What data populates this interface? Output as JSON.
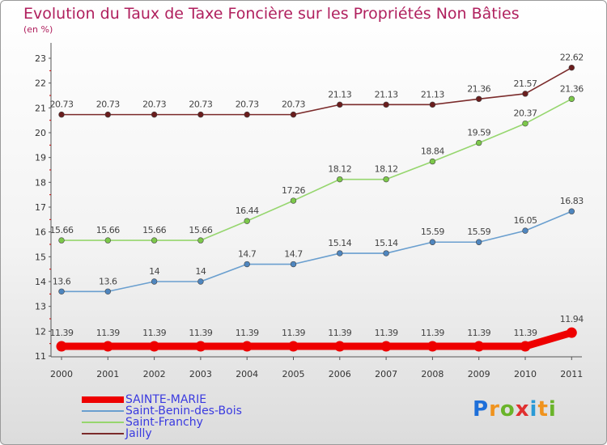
{
  "header": {
    "title": "Evolution du Taux de Taxe Foncière sur les Propriétés Non Bâties",
    "subtitle": "(en %)"
  },
  "logo": {
    "text": "Proxiti",
    "colors": [
      "#1e6fd9",
      "#f0931e",
      "#6ab42a",
      "#e03030",
      "#2a9ad6",
      "#f0931e",
      "#6ab42a"
    ]
  },
  "chart_data": {
    "type": "line",
    "x": [
      "2000",
      "2001",
      "2002",
      "2003",
      "2004",
      "2005",
      "2006",
      "2007",
      "2008",
      "2009",
      "2010",
      "2011"
    ],
    "ylim": [
      11,
      23
    ],
    "yticks": [
      "11",
      "12",
      "13",
      "14",
      "15",
      "16",
      "17",
      "18",
      "19",
      "20",
      "21",
      "22",
      "23"
    ],
    "grid": false,
    "legend_position": "bottom-left",
    "series": [
      {
        "name": "Jailly",
        "color": "#7b2b2b",
        "marker": "#6a1d1d",
        "values": [
          20.73,
          20.73,
          20.73,
          20.73,
          20.73,
          20.73,
          21.13,
          21.13,
          21.13,
          21.36,
          21.57,
          22.62
        ],
        "labels": [
          "20.73",
          "20.73",
          "20.73",
          "20.73",
          "20.73",
          "20.73",
          "21.13",
          "21.13",
          "21.13",
          "21.36",
          "21.57",
          "22.62"
        ]
      },
      {
        "name": "Saint-Franchy",
        "color": "#96d66e",
        "marker": "#7cc84a",
        "values": [
          15.66,
          15.66,
          15.66,
          15.66,
          16.44,
          17.26,
          18.12,
          18.12,
          18.84,
          19.59,
          20.37,
          21.36
        ],
        "labels": [
          "15.66",
          "15.66",
          "15.66",
          "15.66",
          "16.44",
          "17.26",
          "18.12",
          "18.12",
          "18.84",
          "19.59",
          "20.37",
          "21.36"
        ]
      },
      {
        "name": "Saint-Benin-des-Bois",
        "color": "#6a9fcf",
        "marker": "#4f86bf",
        "values": [
          13.6,
          13.6,
          14,
          14,
          14.7,
          14.7,
          15.14,
          15.14,
          15.59,
          15.59,
          16.05,
          16.83
        ],
        "labels": [
          "13.6",
          "13.6",
          "14",
          "14",
          "14.7",
          "14.7",
          "15.14",
          "15.14",
          "15.59",
          "15.59",
          "16.05",
          "16.83"
        ]
      },
      {
        "name": "SAINTE-MARIE",
        "color": "#ee0000",
        "marker": "#ee0000",
        "emphasis": true,
        "values": [
          11.39,
          11.39,
          11.39,
          11.39,
          11.39,
          11.39,
          11.39,
          11.39,
          11.39,
          11.39,
          11.39,
          11.94
        ],
        "labels": [
          "11.39",
          "11.39",
          "11.39",
          "11.39",
          "11.39",
          "11.39",
          "11.39",
          "11.39",
          "11.39",
          "11.39",
          "11.39",
          "11.94"
        ]
      }
    ],
    "legend_order": [
      "SAINTE-MARIE",
      "Saint-Benin-des-Bois",
      "Saint-Franchy",
      "Jailly"
    ]
  }
}
